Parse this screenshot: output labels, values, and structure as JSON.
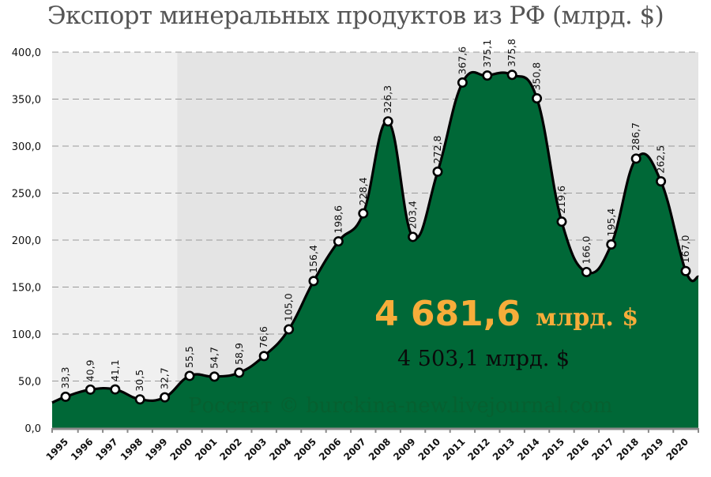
{
  "title": "Экспорт минеральных продуктов из РФ (млрд. $)",
  "totals": {
    "main_value": "4 681,6",
    "main_unit": "млрд. $",
    "secondary": "4 503,1 млрд. $"
  },
  "watermark": "Росстат © burckina-new.livejournal.com",
  "colors": {
    "area_fill": "#006837",
    "line": "#000000",
    "marker_fill": "#ffffff",
    "highlight_text": "#f7ad3a",
    "band_light": "#f0f0f0",
    "band_dark": "#e4e4e4",
    "gridline": "#9a9a9a"
  },
  "chart_data": {
    "type": "area",
    "title": "Экспорт минеральных продуктов из РФ (млрд. $)",
    "xlabel": "",
    "ylabel": "",
    "ylim": [
      0,
      400
    ],
    "yticks": [
      "0,0",
      "50,0",
      "100,0",
      "150,0",
      "200,0",
      "250,0",
      "300,0",
      "350,0",
      "400,0"
    ],
    "grid": true,
    "legend": "none",
    "categories": [
      "1995",
      "1996",
      "1997",
      "1998",
      "1999",
      "2000",
      "2001",
      "2002",
      "2003",
      "2004",
      "2005",
      "2006",
      "2007",
      "2008",
      "2009",
      "2010",
      "2011",
      "2012",
      "2013",
      "2014",
      "2015",
      "2016",
      "2017",
      "2018",
      "2019",
      "2020"
    ],
    "values": [
      33.3,
      40.9,
      41.1,
      30.5,
      32.7,
      55.5,
      54.7,
      58.9,
      76.6,
      105.0,
      156.4,
      198.6,
      228.4,
      326.3,
      203.4,
      272.8,
      367.6,
      375.1,
      375.8,
      350.8,
      219.6,
      166.0,
      195.4,
      286.7,
      262.5,
      167.0
    ],
    "value_labels": [
      "33,3",
      "40,9",
      "41,1",
      "30,5",
      "32,7",
      "55,5",
      "54,7",
      "58,9",
      "76,6",
      "105,0",
      "156,4",
      "198,6",
      "228,4",
      "326,3",
      "203,4",
      "272,8",
      "367,6",
      "375,1",
      "375,8",
      "350,8",
      "219,6",
      "166,0",
      "195,4",
      "286,7",
      "262,5",
      "167,0"
    ],
    "annotations": [
      "4 681,6 млрд. $",
      "4 503,1 млрд. $",
      "Росстат © burckina-new.livejournal.com"
    ],
    "shaded_regions": [
      {
        "from": "1995",
        "to": "1999",
        "color": "#f0f0f0"
      },
      {
        "from": "2000",
        "to": "2020",
        "color": "#e4e4e4"
      }
    ]
  }
}
